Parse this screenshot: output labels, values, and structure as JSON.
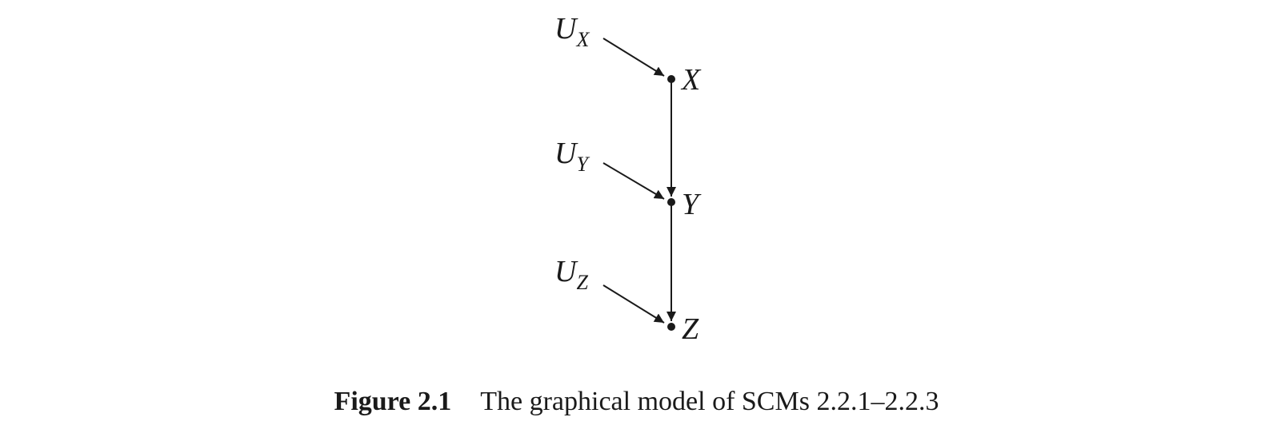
{
  "diagram": {
    "nodes": [
      {
        "id": "X",
        "label": "X"
      },
      {
        "id": "Y",
        "label": "Y"
      },
      {
        "id": "Z",
        "label": "Z"
      }
    ],
    "exogenous": [
      {
        "id": "UX",
        "base": "U",
        "sub": "X",
        "target": "X"
      },
      {
        "id": "UY",
        "base": "U",
        "sub": "Y",
        "target": "Y"
      },
      {
        "id": "UZ",
        "base": "U",
        "sub": "Z",
        "target": "Z"
      }
    ],
    "edges": [
      {
        "from": "UX",
        "to": "X"
      },
      {
        "from": "UY",
        "to": "Y"
      },
      {
        "from": "UZ",
        "to": "Z"
      },
      {
        "from": "X",
        "to": "Y"
      },
      {
        "from": "Y",
        "to": "Z"
      }
    ]
  },
  "caption": {
    "label": "Figure 2.1",
    "text": "The graphical model of SCMs 2.2.1–2.2.3"
  }
}
